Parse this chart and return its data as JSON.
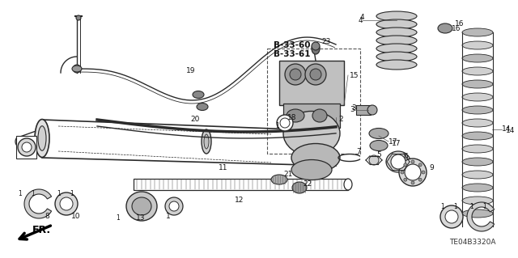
{
  "bg_color": "#ffffff",
  "fig_width": 6.4,
  "fig_height": 3.19,
  "dpi": 100,
  "line_color": "#2a2a2a",
  "text_color": "#111111",
  "fs": 6.5,
  "fs_bold": 7.5,
  "diagram_code": "TE04B3320A",
  "fr_label": "FR."
}
